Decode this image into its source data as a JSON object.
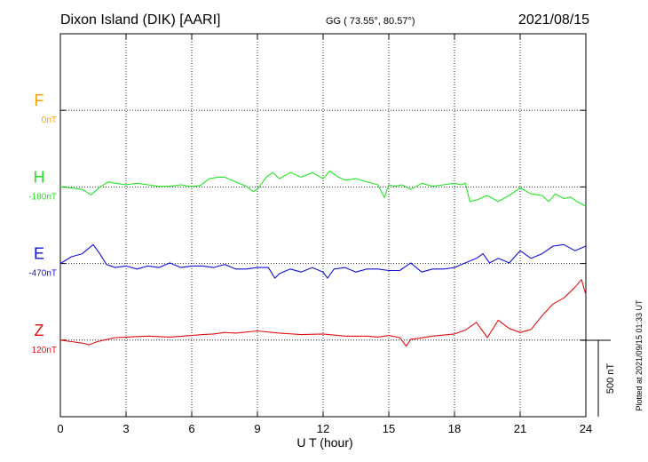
{
  "header": {
    "station": "Dixon Island (DIK)  [AARI]",
    "coords": "GG ( 73.55°,  80.57°)",
    "date": "2021/08/15"
  },
  "plot_note": "Plotted at 2021/09/15 01:33 UT",
  "chart_data": {
    "type": "line",
    "xlabel": "U T (hour)",
    "xlim": [
      0,
      24
    ],
    "xticks": [
      0,
      3,
      6,
      9,
      12,
      15,
      18,
      21,
      24
    ],
    "grid": true,
    "scale_bar": {
      "label": "500 nT",
      "value": 500
    },
    "series": [
      {
        "name": "F",
        "baseline_label": "0nT",
        "color": "#f5a300",
        "x": [],
        "y": []
      },
      {
        "name": "H",
        "baseline_label": "-180nT",
        "color": "#22e622",
        "x": [
          0,
          0.5,
          1,
          1.4,
          1.8,
          2.2,
          2.5,
          3,
          3.5,
          4,
          4.5,
          5,
          5.5,
          6,
          6.4,
          6.8,
          7.2,
          7.5,
          8,
          8.5,
          8.8,
          9,
          9.4,
          9.7,
          10,
          10.5,
          11,
          11.5,
          12,
          12.3,
          12.7,
          13,
          13.5,
          14,
          14.5,
          14.8,
          15,
          15.3,
          15.6,
          16,
          16.5,
          17,
          17.5,
          18,
          18.3,
          18.5,
          18.7,
          19,
          19.5,
          20,
          20.5,
          21,
          21.5,
          22,
          22.3,
          22.6,
          23,
          23.3,
          23.6,
          24
        ],
        "y": [
          -180,
          -186,
          -196,
          -232,
          -182,
          -146,
          -156,
          -166,
          -156,
          -166,
          -176,
          -176,
          -166,
          -178,
          -170,
          -126,
          -116,
          -116,
          -146,
          -176,
          -210,
          -196,
          -116,
          -86,
          -126,
          -86,
          -116,
          -86,
          -126,
          -76,
          -116,
          -136,
          -126,
          -146,
          -166,
          -250,
          -166,
          -176,
          -166,
          -196,
          -156,
          -176,
          -166,
          -156,
          -166,
          -156,
          -276,
          -266,
          -236,
          -276,
          -236,
          -186,
          -226,
          -236,
          -276,
          -226,
          -256,
          -246,
          -276,
          -306
        ]
      },
      {
        "name": "E",
        "baseline_label": "-470nT",
        "color": "#1010d8",
        "x": [
          0,
          0.5,
          1,
          1.5,
          1.8,
          2.1,
          2.5,
          3,
          3.5,
          4,
          4.5,
          5,
          5.5,
          6,
          6.5,
          7,
          7.5,
          8,
          8.5,
          9,
          9.5,
          9.8,
          10,
          10.5,
          11,
          11.5,
          12,
          12.2,
          12.5,
          13,
          13.5,
          14,
          14.5,
          15,
          15.5,
          16,
          16.5,
          17,
          17.5,
          18,
          18.5,
          19,
          19.3,
          19.6,
          20,
          20.5,
          21,
          21.5,
          22,
          22.5,
          23,
          23.5,
          24
        ],
        "y": [
          -470,
          -426,
          -406,
          -346,
          -406,
          -476,
          -496,
          -486,
          -506,
          -486,
          -496,
          -466,
          -496,
          -486,
          -486,
          -496,
          -476,
          -506,
          -506,
          -496,
          -496,
          -566,
          -536,
          -506,
          -526,
          -496,
          -526,
          -566,
          -506,
          -496,
          -526,
          -506,
          -506,
          -516,
          -516,
          -466,
          -526,
          -506,
          -506,
          -496,
          -466,
          -436,
          -406,
          -466,
          -436,
          -466,
          -386,
          -436,
          -406,
          -356,
          -346,
          -386,
          -356
        ]
      },
      {
        "name": "Z",
        "baseline_label": "120nT",
        "color": "#e01010",
        "x": [
          0,
          0.5,
          1,
          1.3,
          1.7,
          2,
          2.5,
          3,
          4,
          5,
          6,
          6.5,
          7,
          7.5,
          8,
          9,
          10,
          11,
          12,
          13,
          14,
          14.5,
          15,
          15.5,
          15.8,
          16,
          16.3,
          17,
          18,
          18.5,
          19,
          19.5,
          20,
          20.5,
          21,
          21.5,
          22,
          22.5,
          23,
          23.5,
          23.8,
          24
        ],
        "y": [
          120,
          110,
          100,
          90,
          110,
          120,
          136,
          140,
          146,
          140,
          150,
          156,
          160,
          170,
          166,
          180,
          166,
          156,
          160,
          146,
          146,
          140,
          150,
          136,
          80,
          126,
          130,
          146,
          160,
          186,
          236,
          136,
          250,
          196,
          170,
          190,
          280,
          356,
          396,
          466,
          516,
          416
        ]
      }
    ]
  }
}
